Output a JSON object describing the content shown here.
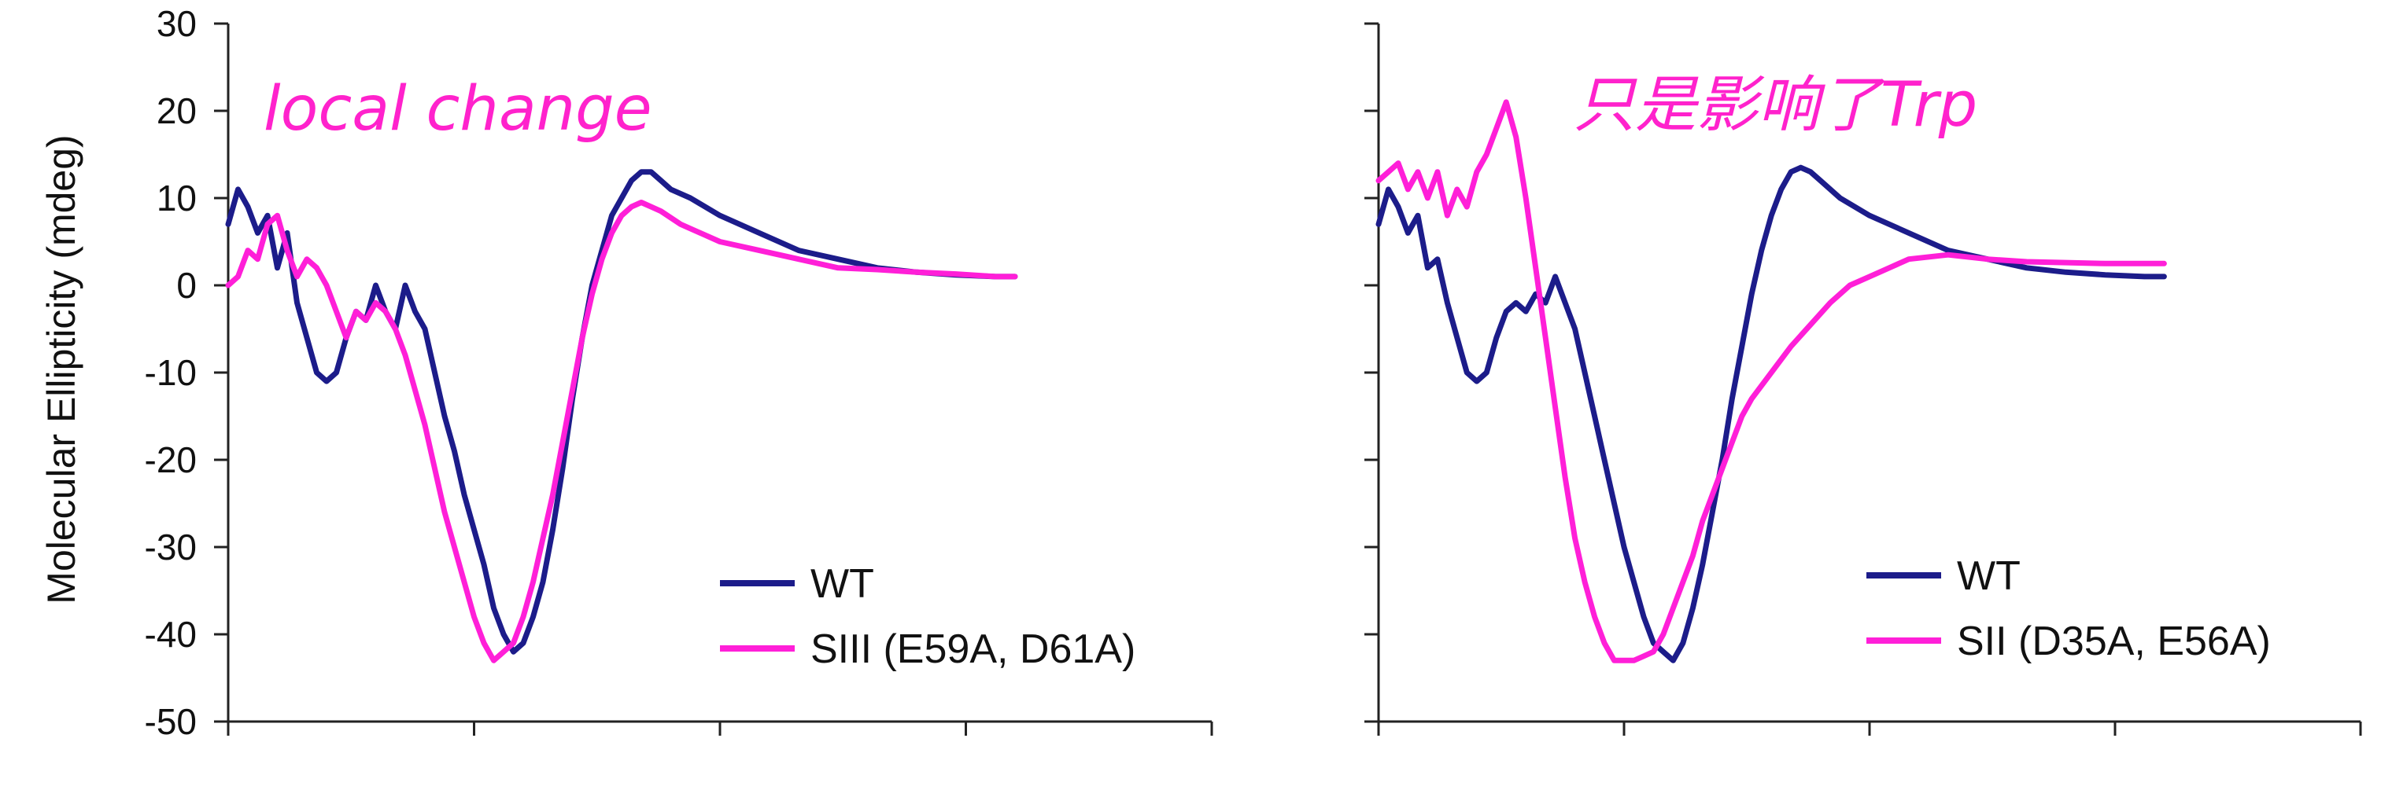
{
  "chart_data": [
    {
      "type": "line",
      "ylabel": "Molecular Ellipticity (mdeg)",
      "ylim": [
        -50,
        30
      ],
      "yticks": [
        "30",
        "20",
        "10",
        "0",
        "-10",
        "-20",
        "-30",
        "-40",
        "-50"
      ],
      "xlim": [
        0,
        100
      ],
      "x_tick_count": 5,
      "grid": false,
      "legend_position": "bottom-right",
      "annotation": "local change",
      "annotation_color": "#ff22cc",
      "series": [
        {
          "name": "WT",
          "color": "#1c1c8a",
          "points": [
            [
              0,
              7
            ],
            [
              1,
              11
            ],
            [
              2,
              9
            ],
            [
              3,
              6
            ],
            [
              4,
              8
            ],
            [
              5,
              2
            ],
            [
              6,
              6
            ],
            [
              7,
              -2
            ],
            [
              8,
              -6
            ],
            [
              9,
              -10
            ],
            [
              10,
              -11
            ],
            [
              11,
              -10
            ],
            [
              12,
              -6
            ],
            [
              13,
              -3
            ],
            [
              14,
              -4
            ],
            [
              15,
              0
            ],
            [
              16,
              -3
            ],
            [
              17,
              -5
            ],
            [
              18,
              0
            ],
            [
              19,
              -3
            ],
            [
              20,
              -5
            ],
            [
              21,
              -10
            ],
            [
              22,
              -15
            ],
            [
              23,
              -19
            ],
            [
              24,
              -24
            ],
            [
              25,
              -28
            ],
            [
              26,
              -32
            ],
            [
              27,
              -37
            ],
            [
              28,
              -40
            ],
            [
              29,
              -42
            ],
            [
              30,
              -41
            ],
            [
              31,
              -38
            ],
            [
              32,
              -34
            ],
            [
              33,
              -28
            ],
            [
              34,
              -21
            ],
            [
              35,
              -13
            ],
            [
              36,
              -6
            ],
            [
              37,
              0
            ],
            [
              38,
              4
            ],
            [
              39,
              8
            ],
            [
              40,
              10
            ],
            [
              41,
              12
            ],
            [
              42,
              13
            ],
            [
              43,
              13
            ],
            [
              44,
              12
            ],
            [
              45,
              11
            ],
            [
              47,
              10
            ],
            [
              50,
              8
            ],
            [
              54,
              6
            ],
            [
              58,
              4
            ],
            [
              62,
              3
            ],
            [
              66,
              2
            ],
            [
              70,
              1.5
            ],
            [
              74,
              1.2
            ],
            [
              78,
              1
            ],
            [
              80,
              1
            ]
          ]
        },
        {
          "name": "SIII (E59A, D61A)",
          "color": "#ff1fd8",
          "points": [
            [
              0,
              0
            ],
            [
              1,
              1
            ],
            [
              2,
              4
            ],
            [
              3,
              3
            ],
            [
              4,
              7
            ],
            [
              5,
              8
            ],
            [
              6,
              4
            ],
            [
              7,
              1
            ],
            [
              8,
              3
            ],
            [
              9,
              2
            ],
            [
              10,
              0
            ],
            [
              11,
              -3
            ],
            [
              12,
              -6
            ],
            [
              13,
              -3
            ],
            [
              14,
              -4
            ],
            [
              15,
              -2
            ],
            [
              16,
              -3
            ],
            [
              17,
              -5
            ],
            [
              18,
              -8
            ],
            [
              19,
              -12
            ],
            [
              20,
              -16
            ],
            [
              21,
              -21
            ],
            [
              22,
              -26
            ],
            [
              23,
              -30
            ],
            [
              24,
              -34
            ],
            [
              25,
              -38
            ],
            [
              26,
              -41
            ],
            [
              27,
              -43
            ],
            [
              28,
              -42
            ],
            [
              29,
              -41
            ],
            [
              30,
              -38
            ],
            [
              31,
              -34
            ],
            [
              32,
              -29
            ],
            [
              33,
              -24
            ],
            [
              34,
              -18
            ],
            [
              35,
              -12
            ],
            [
              36,
              -6
            ],
            [
              37,
              -1
            ],
            [
              38,
              3
            ],
            [
              39,
              6
            ],
            [
              40,
              8
            ],
            [
              41,
              9
            ],
            [
              42,
              9.5
            ],
            [
              43,
              9
            ],
            [
              44,
              8.5
            ],
            [
              46,
              7
            ],
            [
              50,
              5
            ],
            [
              54,
              4
            ],
            [
              58,
              3
            ],
            [
              62,
              2
            ],
            [
              66,
              1.8
            ],
            [
              70,
              1.5
            ],
            [
              74,
              1.3
            ],
            [
              78,
              1
            ],
            [
              80,
              1
            ]
          ]
        }
      ]
    },
    {
      "type": "line",
      "ylim": [
        -50,
        30
      ],
      "xlim": [
        0,
        100
      ],
      "x_tick_count": 5,
      "grid": false,
      "legend_position": "bottom-right",
      "annotation": "只是影响了Trp",
      "annotation_color": "#ff22cc",
      "series": [
        {
          "name": "WT",
          "color": "#1c1c8a",
          "points": [
            [
              0,
              7
            ],
            [
              1,
              11
            ],
            [
              2,
              9
            ],
            [
              3,
              6
            ],
            [
              4,
              8
            ],
            [
              5,
              2
            ],
            [
              6,
              3
            ],
            [
              7,
              -2
            ],
            [
              8,
              -6
            ],
            [
              9,
              -10
            ],
            [
              10,
              -11
            ],
            [
              11,
              -10
            ],
            [
              12,
              -6
            ],
            [
              13,
              -3
            ],
            [
              14,
              -2
            ],
            [
              15,
              -3
            ],
            [
              16,
              -1
            ],
            [
              17,
              -2
            ],
            [
              18,
              1
            ],
            [
              19,
              -2
            ],
            [
              20,
              -5
            ],
            [
              21,
              -10
            ],
            [
              22,
              -15
            ],
            [
              23,
              -20
            ],
            [
              24,
              -25
            ],
            [
              25,
              -30
            ],
            [
              26,
              -34
            ],
            [
              27,
              -38
            ],
            [
              28,
              -41
            ],
            [
              29,
              -42
            ],
            [
              30,
              -43
            ],
            [
              31,
              -41
            ],
            [
              32,
              -37
            ],
            [
              33,
              -32
            ],
            [
              34,
              -26
            ],
            [
              35,
              -20
            ],
            [
              36,
              -13
            ],
            [
              37,
              -7
            ],
            [
              38,
              -1
            ],
            [
              39,
              4
            ],
            [
              40,
              8
            ],
            [
              41,
              11
            ],
            [
              42,
              13
            ],
            [
              43,
              13.5
            ],
            [
              44,
              13
            ],
            [
              45,
              12
            ],
            [
              47,
              10
            ],
            [
              50,
              8
            ],
            [
              54,
              6
            ],
            [
              58,
              4
            ],
            [
              62,
              3
            ],
            [
              66,
              2
            ],
            [
              70,
              1.5
            ],
            [
              74,
              1.2
            ],
            [
              78,
              1
            ],
            [
              80,
              1
            ]
          ]
        },
        {
          "name": "SII (D35A, E56A)",
          "color": "#ff1fd8",
          "points": [
            [
              0,
              12
            ],
            [
              1,
              13
            ],
            [
              2,
              14
            ],
            [
              3,
              11
            ],
            [
              4,
              13
            ],
            [
              5,
              10
            ],
            [
              6,
              13
            ],
            [
              7,
              8
            ],
            [
              8,
              11
            ],
            [
              9,
              9
            ],
            [
              10,
              13
            ],
            [
              11,
              15
            ],
            [
              12,
              18
            ],
            [
              13,
              21
            ],
            [
              14,
              17
            ],
            [
              15,
              10
            ],
            [
              16,
              2
            ],
            [
              17,
              -6
            ],
            [
              18,
              -14
            ],
            [
              19,
              -22
            ],
            [
              20,
              -29
            ],
            [
              21,
              -34
            ],
            [
              22,
              -38
            ],
            [
              23,
              -41
            ],
            [
              24,
              -43
            ],
            [
              25,
              -43
            ],
            [
              26,
              -43
            ],
            [
              27,
              -42.5
            ],
            [
              28,
              -42
            ],
            [
              29,
              -40
            ],
            [
              30,
              -37
            ],
            [
              31,
              -34
            ],
            [
              32,
              -31
            ],
            [
              33,
              -27
            ],
            [
              34,
              -24
            ],
            [
              35,
              -21
            ],
            [
              36,
              -18
            ],
            [
              37,
              -15
            ],
            [
              38,
              -13
            ],
            [
              40,
              -10
            ],
            [
              42,
              -7
            ],
            [
              44,
              -4.5
            ],
            [
              46,
              -2
            ],
            [
              48,
              0
            ],
            [
              50,
              1
            ],
            [
              52,
              2
            ],
            [
              54,
              3
            ],
            [
              58,
              3.5
            ],
            [
              62,
              3
            ],
            [
              66,
              2.7
            ],
            [
              70,
              2.6
            ],
            [
              74,
              2.5
            ],
            [
              78,
              2.5
            ],
            [
              80,
              2.5
            ]
          ]
        }
      ]
    }
  ]
}
